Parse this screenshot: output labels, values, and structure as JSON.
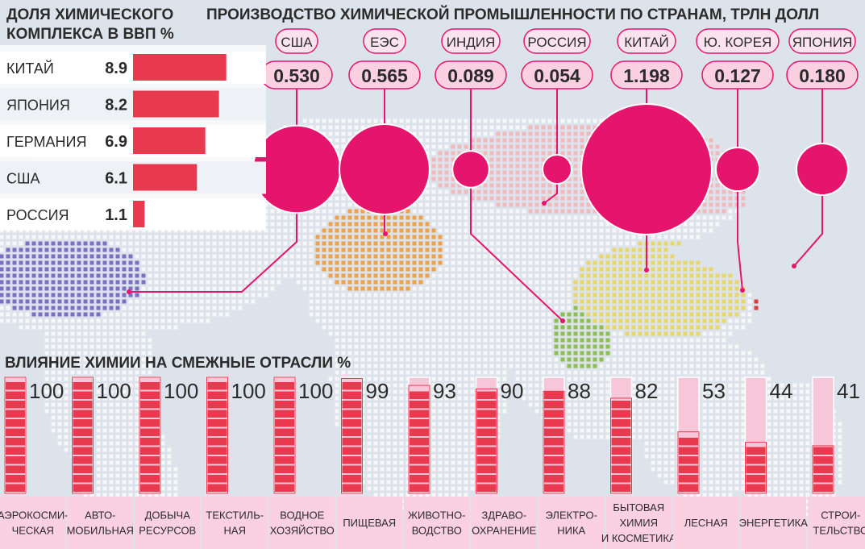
{
  "colors": {
    "background": "#dde3ea",
    "map_dots": "#f5f7f9",
    "accent": "#e5156d",
    "bar": "#e8394f",
    "bar_light": "#f7c7d9",
    "label_box": "#fbd0e1",
    "heading": "#2b2b2b",
    "usa_region": "#7d6fc4",
    "eu_region": "#f0a04a",
    "russia_region": "#f1b9b9",
    "china_region": "#e8d66a",
    "india_region": "#8cbf4f",
    "japan_region": "#e23a3a",
    "korea_region": "#3a6fd8"
  },
  "chart_data": [
    {
      "type": "bar",
      "orientation": "horizontal",
      "title": "ДОЛЯ ХИМИЧЕСКОГО КОМПЛЕКСА В ВВП %",
      "categories": [
        "КИТАЙ",
        "ЯПОНИЯ",
        "ГЕРМАНИЯ",
        "США",
        "РОССИЯ"
      ],
      "values": [
        8.9,
        8.2,
        6.9,
        6.1,
        1.1
      ],
      "value_labels": [
        "8.9",
        "8.2",
        "6.9",
        "6.1",
        "1.1"
      ],
      "xlim": [
        0,
        10
      ]
    },
    {
      "type": "scatter",
      "subtype": "bubble",
      "title": "ПРОИЗВОДСТВО ХИМИЧЕСКОЙ ПРОМЫШЛЕННОСТИ ПО СТРАНАМ, ТРЛН ДОЛЛ",
      "categories": [
        "США",
        "ЕЭС",
        "ИНДИЯ",
        "РОССИЯ",
        "КИТАЙ",
        "Ю. КОРЕЯ",
        "ЯПОНИЯ"
      ],
      "values": [
        0.53,
        0.565,
        0.089,
        0.054,
        1.198,
        0.127,
        0.18
      ],
      "value_labels": [
        "0.530",
        "0.565",
        "0.089",
        "0.054",
        "1.198",
        "0.127",
        "0.180"
      ]
    },
    {
      "type": "bar",
      "orientation": "vertical",
      "stacked": true,
      "title": "ВЛИЯНИЕ ХИМИИ НА СМЕЖНЫЕ ОТРАСЛИ %",
      "categories": [
        [
          "АЭРОКОСМИ-",
          "ЧЕСКАЯ"
        ],
        [
          "АВТО-",
          "МОБИЛЬНАЯ"
        ],
        [
          "ДОБЫЧА",
          "РЕСУРСОВ"
        ],
        [
          "ТЕКСТИЛЬ-",
          "НАЯ"
        ],
        [
          "ВОДНОЕ",
          "ХОЗЯЙСТВО"
        ],
        [
          "ПИЩЕВАЯ"
        ],
        [
          "ЖИВОТНО-",
          "ВОДСТВО"
        ],
        [
          "ЗДРАВО-",
          "ОХРАНЕНИЕ"
        ],
        [
          "ЭЛЕКТРО-",
          "НИКА"
        ],
        [
          "БЫТОВАЯ",
          "ХИМИЯ",
          "И КОСМЕТИКА"
        ],
        [
          "ЛЕСНАЯ"
        ],
        [
          "ЭНЕРГЕТИКА"
        ],
        [
          "СТРОИ-",
          "ТЕЛЬСТВО"
        ]
      ],
      "values": [
        100,
        100,
        100,
        100,
        100,
        99,
        93,
        90,
        88,
        82,
        53,
        44,
        41
      ],
      "value_labels": [
        "100",
        "100",
        "100",
        "100",
        "100",
        "99",
        "93",
        "90",
        "88",
        "82",
        "53",
        "44",
        "41"
      ],
      "ylim": [
        0,
        100
      ]
    }
  ]
}
